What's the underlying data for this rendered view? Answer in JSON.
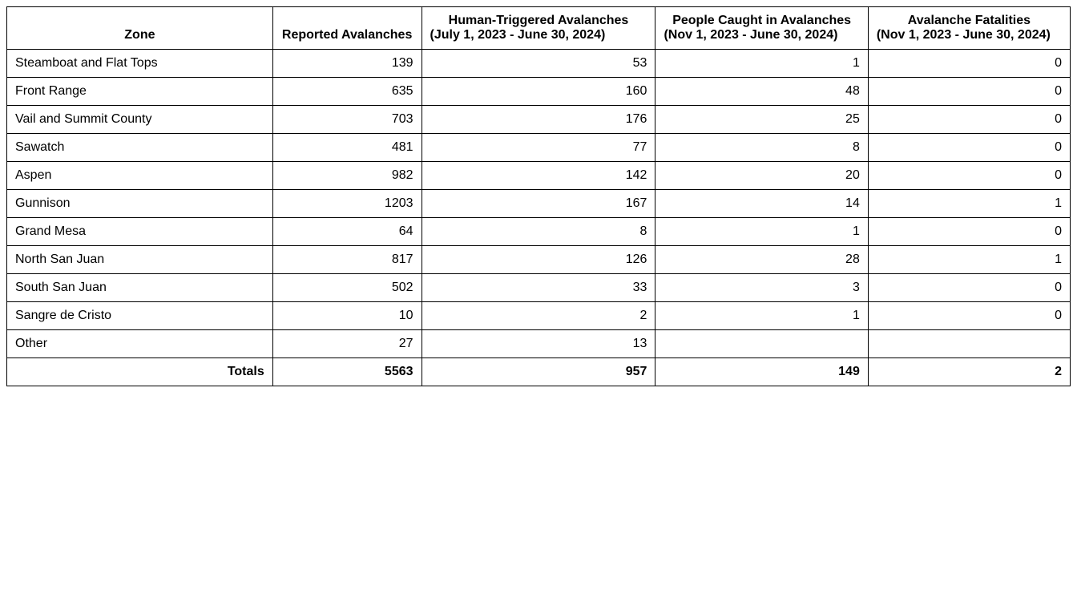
{
  "table": {
    "type": "table",
    "background_color": "#ffffff",
    "border_color": "#000000",
    "text_color": "#000000",
    "font_family": "Arial",
    "header_fontsize": 20,
    "body_fontsize": 20,
    "columns": [
      {
        "key": "zone",
        "title": "Zone",
        "sub": "",
        "align_header": "center",
        "align_body": "left",
        "width_pct": 25
      },
      {
        "key": "reported",
        "title": "Reported Avalanches",
        "sub": "",
        "align_header": "left",
        "align_body": "right",
        "width_pct": 14
      },
      {
        "key": "human",
        "title": "Human-Triggered Avalanches",
        "sub": "(July 1, 2023 - June 30, 2024)",
        "align_header": "left",
        "align_body": "right",
        "width_pct": 22
      },
      {
        "key": "caught",
        "title": "People Caught in Avalanches",
        "sub": "(Nov 1, 2023 - June 30, 2024)",
        "align_header": "left",
        "align_body": "right",
        "width_pct": 20
      },
      {
        "key": "fatal",
        "title": "Avalanche Fatalities",
        "sub": "(Nov 1, 2023 - June 30, 2024)",
        "align_header": "left",
        "align_body": "right",
        "width_pct": 19
      }
    ],
    "rows": [
      {
        "zone": "Steamboat and Flat Tops",
        "reported": "139",
        "human": "53",
        "caught": "1",
        "fatal": "0"
      },
      {
        "zone": "Front Range",
        "reported": "635",
        "human": "160",
        "caught": "48",
        "fatal": "0"
      },
      {
        "zone": "Vail and Summit County",
        "reported": "703",
        "human": "176",
        "caught": "25",
        "fatal": "0"
      },
      {
        "zone": "Sawatch",
        "reported": "481",
        "human": "77",
        "caught": "8",
        "fatal": "0"
      },
      {
        "zone": "Aspen",
        "reported": "982",
        "human": "142",
        "caught": "20",
        "fatal": "0"
      },
      {
        "zone": "Gunnison",
        "reported": "1203",
        "human": "167",
        "caught": "14",
        "fatal": "1"
      },
      {
        "zone": "Grand Mesa",
        "reported": "64",
        "human": "8",
        "caught": "1",
        "fatal": "0"
      },
      {
        "zone": "North San Juan",
        "reported": "817",
        "human": "126",
        "caught": "28",
        "fatal": "1"
      },
      {
        "zone": "South San Juan",
        "reported": "502",
        "human": "33",
        "caught": "3",
        "fatal": "0"
      },
      {
        "zone": "Sangre de Cristo",
        "reported": "10",
        "human": "2",
        "caught": "1",
        "fatal": "0"
      },
      {
        "zone": "Other",
        "reported": "27",
        "human": "13",
        "caught": "",
        "fatal": ""
      }
    ],
    "totals": {
      "zone": "Totals",
      "reported": "5563",
      "human": "957",
      "caught": "149",
      "fatal": "2"
    }
  }
}
